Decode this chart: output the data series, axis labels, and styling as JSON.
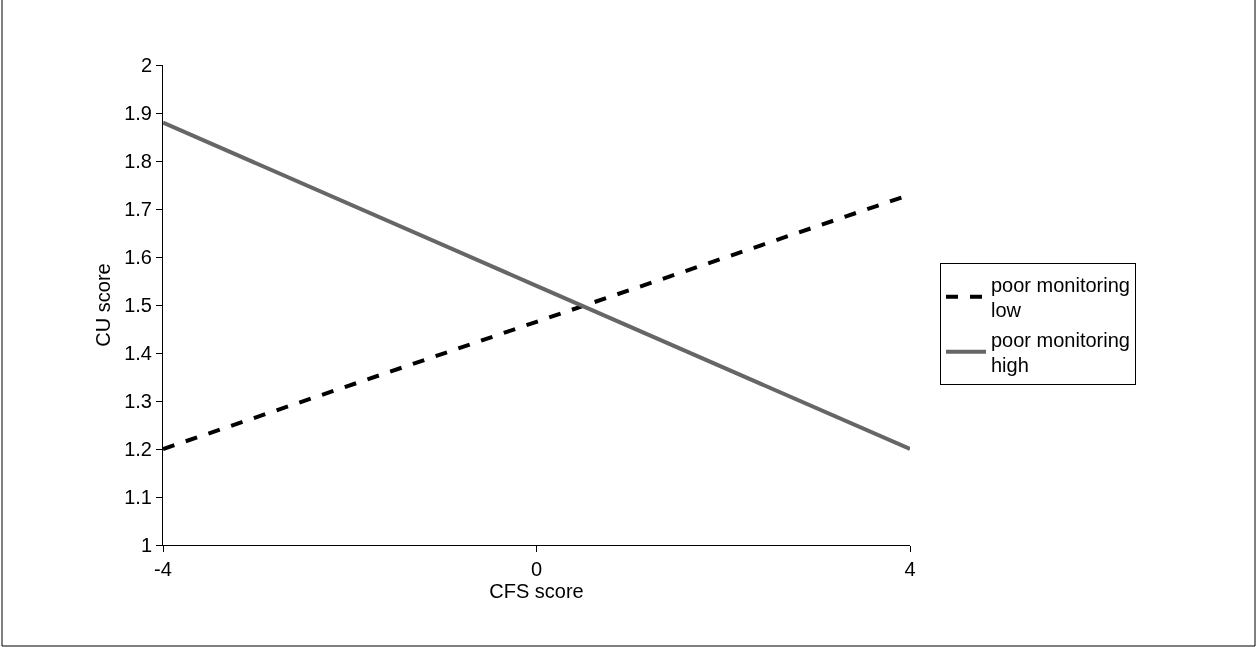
{
  "chart_data": {
    "type": "line",
    "xlabel": "CFS score",
    "ylabel": "CU score",
    "x": [
      -4,
      0,
      4
    ],
    "series": [
      {
        "name": "poor monitoring low",
        "color": "#000000",
        "line_style": "dashed",
        "values": [
          1.2,
          1.465,
          1.73
        ]
      },
      {
        "name": "poor monitoring high",
        "color": "#666666",
        "line_style": "solid",
        "values": [
          1.88,
          1.54,
          1.2
        ]
      }
    ],
    "xlim": [
      -4,
      4
    ],
    "xticks": [
      -4,
      0,
      4
    ],
    "ylim": [
      1,
      2
    ],
    "yticks": [
      1,
      1.1,
      1.2,
      1.3,
      1.4,
      1.5,
      1.6,
      1.7,
      1.8,
      1.9,
      2
    ],
    "grid": false,
    "legend": "right",
    "marker": "none"
  }
}
